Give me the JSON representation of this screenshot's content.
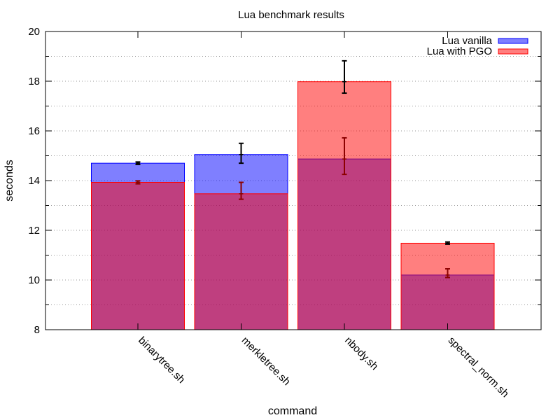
{
  "chart_data": {
    "type": "bar",
    "title": "Lua benchmark results",
    "xlabel": "command",
    "ylabel": "seconds",
    "categories": [
      "binarytree.sh",
      "merkletree.sh",
      "nbody.sh",
      "spectral_norm.sh"
    ],
    "ylim": [
      8,
      20
    ],
    "yticks": [
      8,
      10,
      12,
      14,
      16,
      18,
      20
    ],
    "grid": "horizontal dotted",
    "legend_position": "top-right",
    "series": [
      {
        "name": "Lua vanilla",
        "color": "#0000ff",
        "values": [
          14.7,
          15.05,
          14.87,
          10.2
        ],
        "error_low": [
          14.65,
          14.7,
          14.25,
          10.1
        ],
        "error_high": [
          14.75,
          15.5,
          15.72,
          10.45
        ]
      },
      {
        "name": "Lua with PGO",
        "color": "#ff0000",
        "values": [
          13.93,
          13.47,
          17.98,
          11.48
        ],
        "error_low": [
          13.87,
          13.25,
          17.52,
          11.44
        ],
        "error_high": [
          13.99,
          13.93,
          18.82,
          11.53
        ]
      }
    ]
  }
}
